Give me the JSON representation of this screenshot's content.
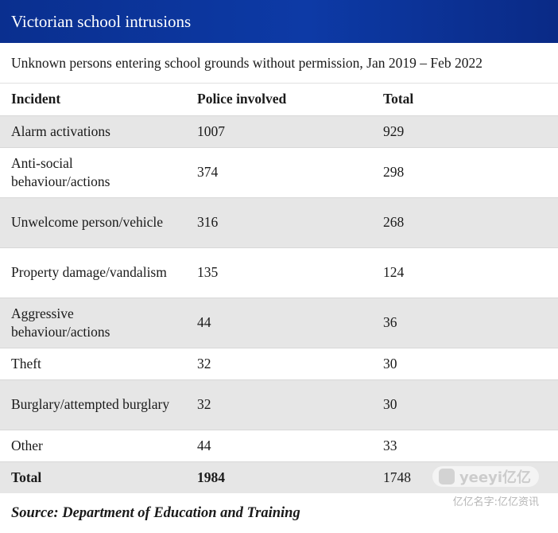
{
  "chart_data": {
    "type": "table",
    "title": "Victorian school intrusions",
    "subtitle": "Unknown persons entering school grounds without permission, Jan 2019 – Feb 2022",
    "columns": [
      "Incident",
      "Police involved",
      "Total"
    ],
    "rows": [
      {
        "incident": "Alarm activations",
        "police": "1007",
        "total": "929"
      },
      {
        "incident": "Anti-social behaviour/actions",
        "police": "374",
        "total": "298"
      },
      {
        "incident": "Unwelcome person/vehicle",
        "police": "316",
        "total": "268"
      },
      {
        "incident": "Property damage/vandalism",
        "police": "135",
        "total": "124"
      },
      {
        "incident": "Aggressive behaviour/actions",
        "police": "44",
        "total": "36"
      },
      {
        "incident": "Theft",
        "police": "32",
        "total": "30"
      },
      {
        "incident": "Burglary/attempted burglary",
        "police": "32",
        "total": "30"
      },
      {
        "incident": "Other",
        "police": "44",
        "total": "33"
      }
    ],
    "total_row": {
      "incident": "Total",
      "police": "1984",
      "total": "1748"
    },
    "source": "Source: Department of Education and Training"
  },
  "watermark": {
    "logo_text": "yeeyi亿亿",
    "caption": "亿亿名字:亿亿资讯"
  },
  "colors": {
    "title_bar": "#0d3aa6",
    "row_shade": "#e6e6e6"
  }
}
